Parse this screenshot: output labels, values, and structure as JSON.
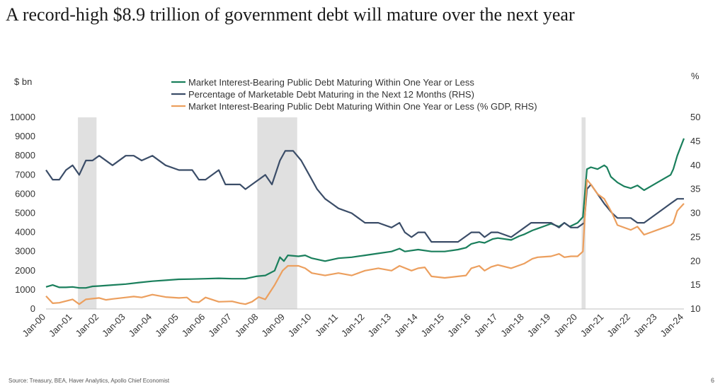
{
  "title": "A record-high $8.9 trillion of government debt will mature over the next year",
  "source": "Source: Treasury, BEA, Haver Analytics, Apollo Chief Economist",
  "page_number": "6",
  "colors": {
    "green": "#1a7f5c",
    "navy": "#3b4d68",
    "orange": "#ec9f5e",
    "recession": "#e0e0e0",
    "axis": "#bfbfbf"
  },
  "chart_data": {
    "type": "line",
    "left_unit": "$ bn",
    "right_unit": "%",
    "ylim_left": [
      0,
      10000
    ],
    "ylim_right": [
      10,
      50
    ],
    "yticks_left": [
      "0",
      "1000",
      "2000",
      "3000",
      "4000",
      "5000",
      "6000",
      "7000",
      "8000",
      "9000",
      "10000"
    ],
    "yticks_right": [
      "10",
      "15",
      "20",
      "25",
      "30",
      "35",
      "40",
      "45",
      "50"
    ],
    "xlim": [
      2000.0,
      2024.0
    ],
    "xticks": [
      "Jan-00",
      "Jan-01",
      "Jan-02",
      "Jan-03",
      "Jan-04",
      "Jan-05",
      "Jan-06",
      "Jan-07",
      "Jan-08",
      "Jan-09",
      "Jan-10",
      "Jan-11",
      "Jan-12",
      "Jan-13",
      "Jan-14",
      "Jan-15",
      "Jan-16",
      "Jan-17",
      "Jan-18",
      "Jan-19",
      "Jan-20",
      "Jan-21",
      "Jan-22",
      "Jan-23",
      "Jan-24"
    ],
    "recessions": [
      [
        2001.2,
        2001.9
      ],
      [
        2007.95,
        2009.45
      ],
      [
        2020.15,
        2020.3
      ]
    ],
    "legend": [
      "Market Interest-Bearing Public Debt Maturing Within One Year or Less",
      "Percentage of Marketable Debt Maturing in the Next 12 Months (RHS)",
      "Market Interest-Bearing Public Debt Maturing Within One Year or Less (% GDP, RHS)"
    ],
    "series": [
      {
        "name": "Market Interest-Bearing Public Debt Maturing Within One Year or Less",
        "axis": "left",
        "color": "#1a7f5c",
        "points": [
          [
            2000.0,
            1150
          ],
          [
            2000.25,
            1250
          ],
          [
            2000.5,
            1130
          ],
          [
            2000.75,
            1130
          ],
          [
            2001.0,
            1150
          ],
          [
            2001.25,
            1100
          ],
          [
            2001.5,
            1100
          ],
          [
            2001.75,
            1180
          ],
          [
            2002.0,
            1200
          ],
          [
            2002.5,
            1250
          ],
          [
            2003.0,
            1300
          ],
          [
            2003.5,
            1380
          ],
          [
            2004.0,
            1450
          ],
          [
            2004.5,
            1500
          ],
          [
            2005.0,
            1550
          ],
          [
            2005.5,
            1560
          ],
          [
            2006.0,
            1580
          ],
          [
            2006.5,
            1600
          ],
          [
            2007.0,
            1580
          ],
          [
            2007.5,
            1580
          ],
          [
            2007.9,
            1700
          ],
          [
            2008.25,
            1750
          ],
          [
            2008.6,
            2000
          ],
          [
            2008.8,
            2700
          ],
          [
            2008.95,
            2500
          ],
          [
            2009.1,
            2800
          ],
          [
            2009.5,
            2750
          ],
          [
            2009.75,
            2800
          ],
          [
            2010.0,
            2650
          ],
          [
            2010.5,
            2500
          ],
          [
            2011.0,
            2650
          ],
          [
            2011.5,
            2700
          ],
          [
            2012.0,
            2800
          ],
          [
            2012.5,
            2900
          ],
          [
            2013.0,
            3000
          ],
          [
            2013.3,
            3150
          ],
          [
            2013.5,
            3000
          ],
          [
            2014.0,
            3100
          ],
          [
            2014.5,
            3000
          ],
          [
            2015.0,
            3000
          ],
          [
            2015.5,
            3100
          ],
          [
            2015.8,
            3200
          ],
          [
            2016.0,
            3400
          ],
          [
            2016.3,
            3500
          ],
          [
            2016.5,
            3450
          ],
          [
            2016.8,
            3650
          ],
          [
            2017.0,
            3700
          ],
          [
            2017.5,
            3600
          ],
          [
            2017.8,
            3800
          ],
          [
            2018.0,
            3900
          ],
          [
            2018.3,
            4100
          ],
          [
            2018.5,
            4200
          ],
          [
            2018.8,
            4350
          ],
          [
            2019.0,
            4450
          ],
          [
            2019.3,
            4300
          ],
          [
            2019.5,
            4500
          ],
          [
            2019.7,
            4300
          ],
          [
            2020.0,
            4500
          ],
          [
            2020.2,
            4800
          ],
          [
            2020.35,
            7300
          ],
          [
            2020.5,
            7400
          ],
          [
            2020.75,
            7300
          ],
          [
            2021.0,
            7500
          ],
          [
            2021.1,
            7400
          ],
          [
            2021.25,
            6900
          ],
          [
            2021.5,
            6600
          ],
          [
            2021.75,
            6400
          ],
          [
            2022.0,
            6300
          ],
          [
            2022.25,
            6450
          ],
          [
            2022.5,
            6200
          ],
          [
            2022.75,
            6400
          ],
          [
            2023.0,
            6600
          ],
          [
            2023.25,
            6800
          ],
          [
            2023.5,
            7000
          ],
          [
            2023.6,
            7300
          ],
          [
            2023.75,
            8000
          ],
          [
            2024.0,
            8900
          ]
        ]
      },
      {
        "name": "Percentage of Marketable Debt Maturing in the Next 12 Months (RHS)",
        "axis": "right",
        "color": "#3b4d68",
        "points": [
          [
            2000.0,
            39
          ],
          [
            2000.25,
            37
          ],
          [
            2000.5,
            37
          ],
          [
            2000.75,
            39
          ],
          [
            2001.0,
            40
          ],
          [
            2001.25,
            38
          ],
          [
            2001.5,
            41
          ],
          [
            2001.75,
            41
          ],
          [
            2002.0,
            42
          ],
          [
            2002.5,
            40
          ],
          [
            2003.0,
            42
          ],
          [
            2003.3,
            42
          ],
          [
            2003.6,
            41
          ],
          [
            2004.0,
            42
          ],
          [
            2004.5,
            40
          ],
          [
            2005.0,
            39
          ],
          [
            2005.5,
            39
          ],
          [
            2005.75,
            37
          ],
          [
            2006.0,
            37
          ],
          [
            2006.5,
            39
          ],
          [
            2006.75,
            36
          ],
          [
            2007.0,
            36
          ],
          [
            2007.3,
            36
          ],
          [
            2007.5,
            35
          ],
          [
            2007.75,
            36
          ],
          [
            2008.0,
            37
          ],
          [
            2008.25,
            38
          ],
          [
            2008.5,
            36
          ],
          [
            2008.8,
            41
          ],
          [
            2009.0,
            43
          ],
          [
            2009.3,
            43
          ],
          [
            2009.6,
            41
          ],
          [
            2009.9,
            38
          ],
          [
            2010.2,
            35
          ],
          [
            2010.5,
            33
          ],
          [
            2010.75,
            32
          ],
          [
            2011.0,
            31
          ],
          [
            2011.5,
            30
          ],
          [
            2011.75,
            29
          ],
          [
            2012.0,
            28
          ],
          [
            2012.5,
            28
          ],
          [
            2013.0,
            27
          ],
          [
            2013.3,
            28
          ],
          [
            2013.5,
            26
          ],
          [
            2013.75,
            25
          ],
          [
            2014.0,
            26
          ],
          [
            2014.25,
            26
          ],
          [
            2014.5,
            24
          ],
          [
            2015.0,
            24
          ],
          [
            2015.5,
            24
          ],
          [
            2016.0,
            26
          ],
          [
            2016.3,
            26
          ],
          [
            2016.5,
            25
          ],
          [
            2016.75,
            26
          ],
          [
            2017.0,
            26
          ],
          [
            2017.5,
            25
          ],
          [
            2017.75,
            26
          ],
          [
            2018.0,
            27
          ],
          [
            2018.25,
            28
          ],
          [
            2018.5,
            28
          ],
          [
            2019.0,
            28
          ],
          [
            2019.3,
            27
          ],
          [
            2019.5,
            28
          ],
          [
            2019.75,
            27
          ],
          [
            2020.0,
            27
          ],
          [
            2020.25,
            28
          ],
          [
            2020.35,
            35
          ],
          [
            2020.5,
            36
          ],
          [
            2020.75,
            34
          ],
          [
            2021.0,
            32
          ],
          [
            2021.3,
            30
          ],
          [
            2021.5,
            29
          ],
          [
            2022.0,
            29
          ],
          [
            2022.25,
            28
          ],
          [
            2022.5,
            28
          ],
          [
            2023.0,
            30
          ],
          [
            2023.5,
            32
          ],
          [
            2023.75,
            33
          ],
          [
            2024.0,
            33
          ]
        ]
      },
      {
        "name": "Market Interest-Bearing Public Debt Maturing Within One Year or Less (% GDP, RHS)",
        "axis": "right",
        "color": "#ec9f5e",
        "points": [
          [
            2000.0,
            12.7
          ],
          [
            2000.25,
            11.2
          ],
          [
            2000.5,
            11.3
          ],
          [
            2001.0,
            12.0
          ],
          [
            2001.25,
            11.0
          ],
          [
            2001.5,
            12.0
          ],
          [
            2002.0,
            12.3
          ],
          [
            2002.25,
            11.9
          ],
          [
            2002.5,
            12.1
          ],
          [
            2003.0,
            12.4
          ],
          [
            2003.3,
            12.6
          ],
          [
            2003.6,
            12.4
          ],
          [
            2004.0,
            13.0
          ],
          [
            2004.5,
            12.5
          ],
          [
            2005.0,
            12.3
          ],
          [
            2005.3,
            12.4
          ],
          [
            2005.5,
            11.5
          ],
          [
            2005.75,
            11.4
          ],
          [
            2006.0,
            12.4
          ],
          [
            2006.5,
            11.5
          ],
          [
            2007.0,
            11.6
          ],
          [
            2007.3,
            11.2
          ],
          [
            2007.5,
            11.0
          ],
          [
            2007.75,
            11.5
          ],
          [
            2008.0,
            12.5
          ],
          [
            2008.25,
            12.0
          ],
          [
            2008.6,
            15.0
          ],
          [
            2008.9,
            18.0
          ],
          [
            2009.1,
            19.0
          ],
          [
            2009.5,
            19.0
          ],
          [
            2009.75,
            18.5
          ],
          [
            2010.0,
            17.5
          ],
          [
            2010.5,
            17.0
          ],
          [
            2011.0,
            17.5
          ],
          [
            2011.5,
            17.0
          ],
          [
            2012.0,
            18.0
          ],
          [
            2012.5,
            18.5
          ],
          [
            2013.0,
            18.0
          ],
          [
            2013.3,
            19.0
          ],
          [
            2013.75,
            18.0
          ],
          [
            2014.0,
            18.5
          ],
          [
            2014.25,
            18.7
          ],
          [
            2014.5,
            16.8
          ],
          [
            2015.0,
            16.5
          ],
          [
            2015.5,
            16.8
          ],
          [
            2015.8,
            17.0
          ],
          [
            2016.0,
            18.5
          ],
          [
            2016.3,
            19.0
          ],
          [
            2016.5,
            18.0
          ],
          [
            2016.75,
            18.8
          ],
          [
            2017.0,
            19.2
          ],
          [
            2017.5,
            18.5
          ],
          [
            2017.75,
            19.0
          ],
          [
            2018.0,
            19.5
          ],
          [
            2018.3,
            20.5
          ],
          [
            2018.5,
            20.8
          ],
          [
            2019.0,
            21.0
          ],
          [
            2019.3,
            21.5
          ],
          [
            2019.5,
            20.8
          ],
          [
            2019.75,
            21.0
          ],
          [
            2020.0,
            21.0
          ],
          [
            2020.2,
            22.0
          ],
          [
            2020.35,
            37.0
          ],
          [
            2020.5,
            36.0
          ],
          [
            2020.75,
            34.0
          ],
          [
            2021.0,
            33.0
          ],
          [
            2021.3,
            30.0
          ],
          [
            2021.5,
            27.5
          ],
          [
            2022.0,
            26.5
          ],
          [
            2022.25,
            27.2
          ],
          [
            2022.5,
            25.5
          ],
          [
            2022.75,
            26.0
          ],
          [
            2023.0,
            26.5
          ],
          [
            2023.25,
            27.0
          ],
          [
            2023.5,
            27.5
          ],
          [
            2023.6,
            28.0
          ],
          [
            2023.75,
            30.5
          ],
          [
            2024.0,
            32.0
          ]
        ]
      }
    ]
  }
}
